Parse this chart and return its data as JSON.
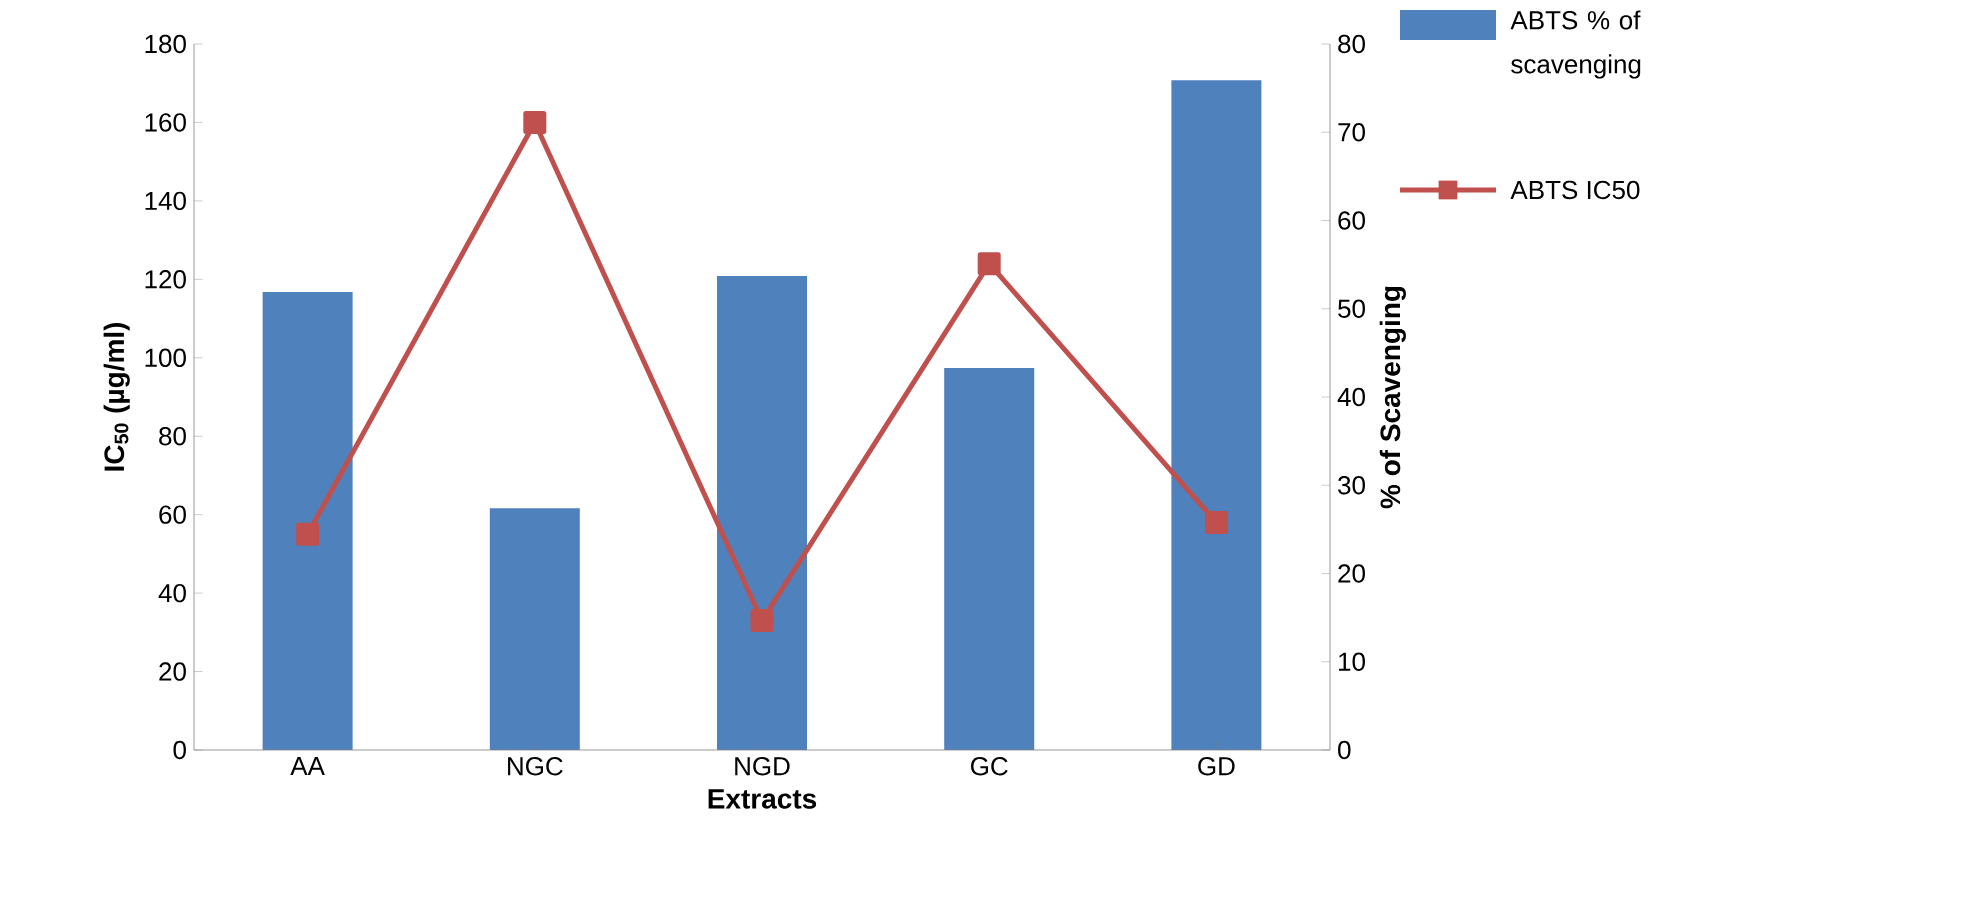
{
  "chart_data": {
    "type": "bar",
    "xlabel": "Extracts",
    "ylabel": "IC$_{50}$ (µg/ml)",
    "y2label": "% of Scavenging",
    "categories": [
      "AA",
      "NGC",
      "NGD",
      "GC",
      "GD"
    ],
    "series": [
      {
        "name": "ABTS % of scavenging",
        "axis": "y2",
        "color": "#4f81bd",
        "values": [
          51.9,
          27.4,
          53.7,
          43.3,
          75.9
        ]
      },
      {
        "name": "ABTS IC50",
        "type": "line",
        "color": "#c0504d",
        "marker": "square",
        "values": [
          55,
          160,
          33,
          124,
          58
        ]
      }
    ],
    "ylim": [
      0,
      180
    ],
    "yticks": [
      0,
      20,
      40,
      60,
      80,
      100,
      120,
      140,
      160,
      180
    ],
    "y2lim": [
      0,
      80
    ],
    "y2ticks": [
      0,
      10,
      20,
      30,
      40,
      50,
      60,
      70,
      80
    ],
    "legend": "right",
    "grid": false
  }
}
